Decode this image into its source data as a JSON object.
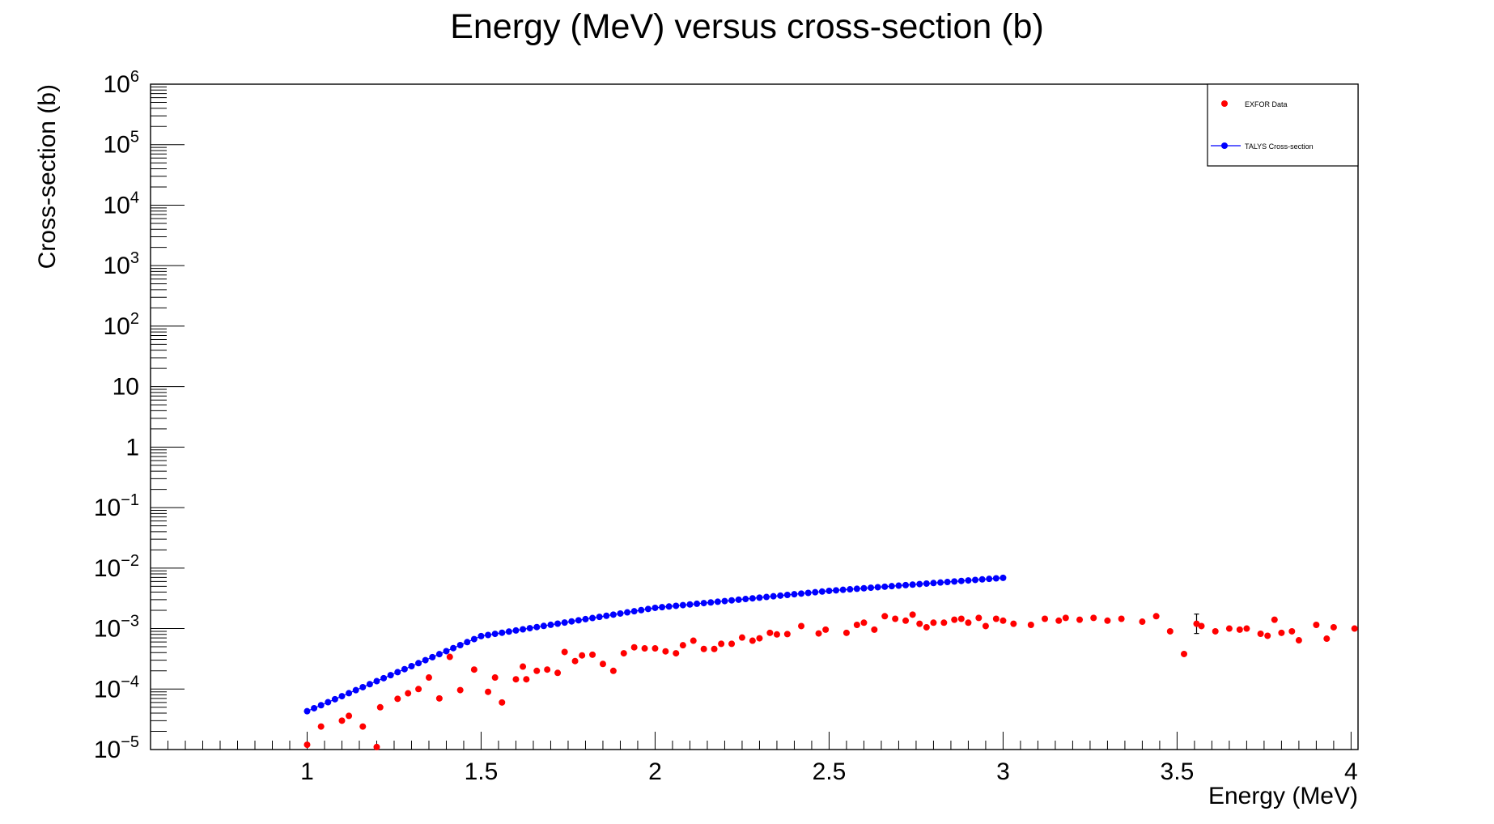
{
  "chart_data": {
    "type": "scatter",
    "title": "Energy (MeV) versus cross-section (b)",
    "xlabel": "Energy (MeV)",
    "ylabel": "Cross-section (b)",
    "xlim": [
      0.55,
      4.02
    ],
    "ylim_log10": [
      -5,
      6
    ],
    "yscale": "log",
    "grid": false,
    "legend_position": "top-right",
    "x_ticks": [
      {
        "value": 1,
        "label": "1"
      },
      {
        "value": 1.5,
        "label": "1.5"
      },
      {
        "value": 2,
        "label": "2"
      },
      {
        "value": 2.5,
        "label": "2.5"
      },
      {
        "value": 3,
        "label": "3"
      },
      {
        "value": 3.5,
        "label": "3.5"
      },
      {
        "value": 4,
        "label": "4"
      }
    ],
    "y_ticks": [
      {
        "exp": 6,
        "base": "10",
        "sup": "6"
      },
      {
        "exp": 5,
        "base": "10",
        "sup": "5"
      },
      {
        "exp": 4,
        "base": "10",
        "sup": "4"
      },
      {
        "exp": 3,
        "base": "10",
        "sup": "3"
      },
      {
        "exp": 2,
        "base": "10",
        "sup": "2"
      },
      {
        "exp": 1,
        "base": "10",
        "sup": ""
      },
      {
        "exp": 0,
        "base": "1",
        "sup": ""
      },
      {
        "exp": -1,
        "base": "10",
        "sup": "−1"
      },
      {
        "exp": -2,
        "base": "10",
        "sup": "−2"
      },
      {
        "exp": -3,
        "base": "10",
        "sup": "−3"
      },
      {
        "exp": -4,
        "base": "10",
        "sup": "−4"
      },
      {
        "exp": -5,
        "base": "10",
        "sup": "−5"
      }
    ],
    "series": [
      {
        "name": "EXFOR Data",
        "color": "#ff0000",
        "marker": "circle",
        "line": false,
        "x": [
          1.0,
          1.04,
          1.1,
          1.12,
          1.16,
          1.2,
          1.21,
          1.26,
          1.29,
          1.32,
          1.35,
          1.38,
          1.41,
          1.44,
          1.48,
          1.52,
          1.54,
          1.56,
          1.6,
          1.62,
          1.63,
          1.66,
          1.69,
          1.72,
          1.74,
          1.77,
          1.79,
          1.82,
          1.85,
          1.88,
          1.91,
          1.94,
          1.97,
          2.0,
          2.03,
          2.06,
          2.08,
          2.11,
          2.14,
          2.17,
          2.19,
          2.22,
          2.25,
          2.28,
          2.3,
          2.33,
          2.35,
          2.38,
          2.42,
          2.47,
          2.49,
          2.55,
          2.58,
          2.6,
          2.63,
          2.66,
          2.69,
          2.72,
          2.74,
          2.76,
          2.78,
          2.8,
          2.83,
          2.86,
          2.88,
          2.9,
          2.93,
          2.95,
          2.98,
          3.0,
          3.03,
          3.08,
          3.12,
          3.16,
          3.18,
          3.22,
          3.26,
          3.3,
          3.34,
          3.4,
          3.44,
          3.48,
          3.52,
          3.556,
          3.57,
          3.61,
          3.65,
          3.68,
          3.7,
          3.74,
          3.76,
          3.78,
          3.8,
          3.83,
          3.85,
          3.9,
          3.93,
          3.95,
          4.01
        ],
        "y": [
          1.2e-05,
          2.4e-05,
          3e-05,
          3.6e-05,
          2.4e-05,
          1.1e-05,
          5e-05,
          6.9e-05,
          8.5e-05,
          0.0001,
          0.000155,
          7e-05,
          0.00034,
          9.6e-05,
          0.00021,
          9e-05,
          0.000155,
          6e-05,
          0.000145,
          0.000235,
          0.000145,
          0.0002,
          0.00021,
          0.000185,
          0.00041,
          0.00029,
          0.00036,
          0.00037,
          0.00026,
          0.0002,
          0.00039,
          0.00049,
          0.00047,
          0.00047,
          0.00042,
          0.00039,
          0.00053,
          0.00063,
          0.00046,
          0.00046,
          0.00056,
          0.00056,
          0.00071,
          0.00063,
          0.00069,
          0.00085,
          0.0008,
          0.00081,
          0.0011,
          0.00083,
          0.00096,
          0.00085,
          0.00115,
          0.00125,
          0.00096,
          0.0016,
          0.00145,
          0.00135,
          0.0017,
          0.0012,
          0.00105,
          0.00125,
          0.00125,
          0.0014,
          0.00145,
          0.00125,
          0.0015,
          0.0011,
          0.00145,
          0.00135,
          0.0012,
          0.00115,
          0.00145,
          0.00135,
          0.0015,
          0.0014,
          0.0015,
          0.00135,
          0.00145,
          0.0013,
          0.0016,
          0.0009,
          0.00038,
          0.0012,
          0.0011,
          0.0009,
          0.001,
          0.00096,
          0.001,
          0.00082,
          0.00076,
          0.0014,
          0.00085,
          0.0009,
          0.00064,
          0.00115,
          0.00068,
          0.00105,
          0.001
        ],
        "yerr_shown": [
          3.556
        ]
      },
      {
        "name": "TALYS Cross-section",
        "color": "#0000ff",
        "marker": "circle",
        "line": true,
        "x_start": 1.0,
        "x_end": 3.0,
        "x_step": 0.02,
        "y_anchor_points": {
          "x": [
            1.0,
            1.5,
            2.0,
            2.5,
            3.0
          ],
          "y": [
            4.3e-05,
            0.00075,
            0.0022,
            0.0042,
            0.0069
          ]
        }
      }
    ]
  }
}
